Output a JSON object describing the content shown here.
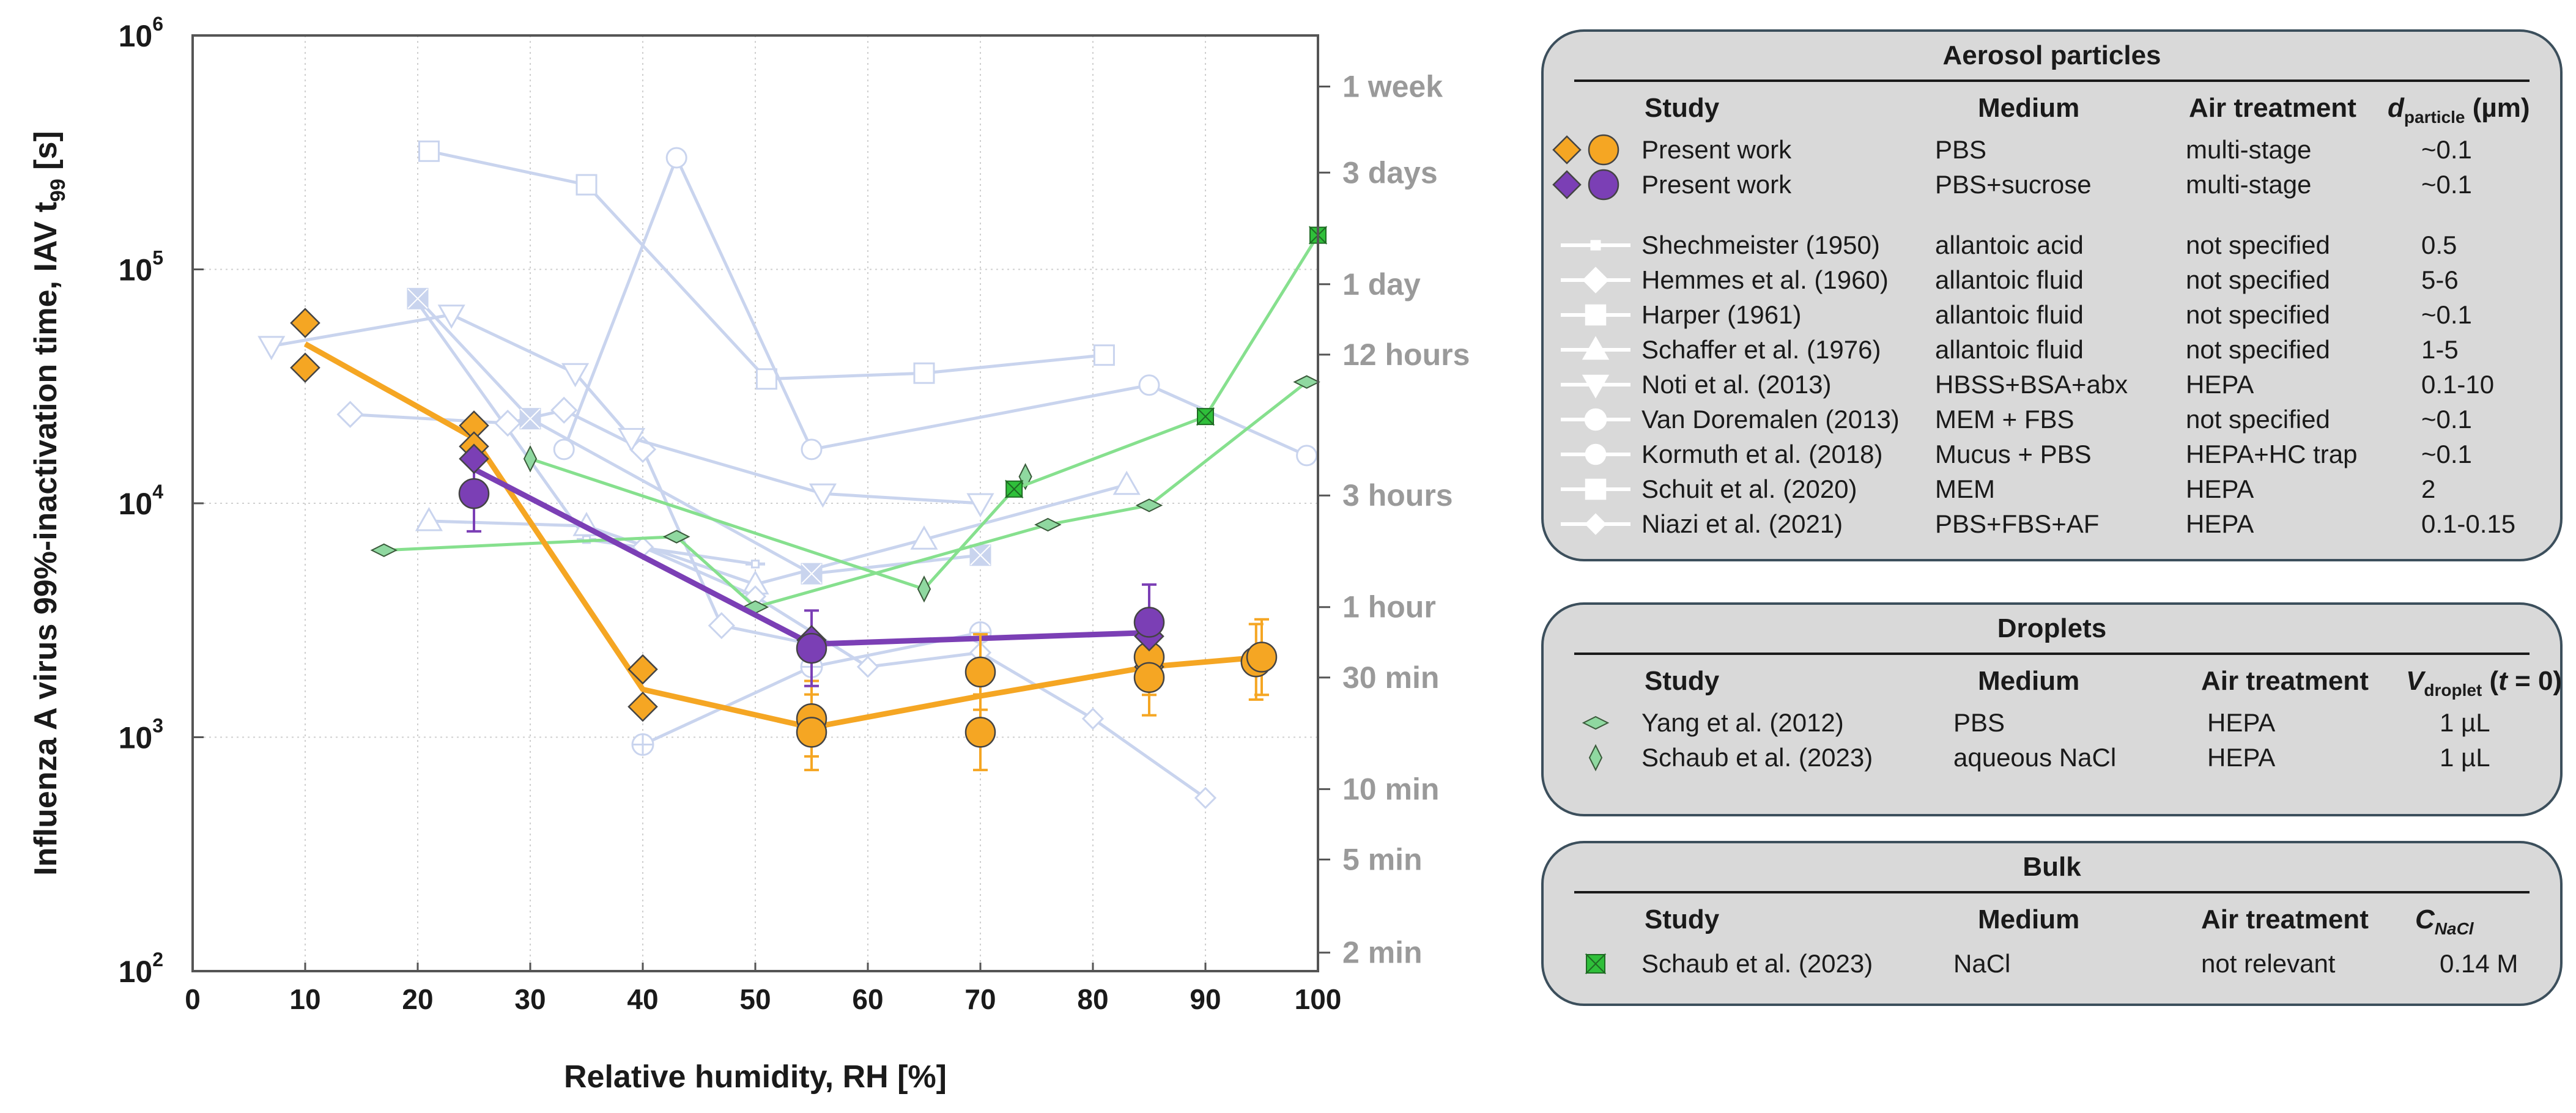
{
  "chart_data": {
    "type": "scatter",
    "xlabel": "Relative humidity, RH [%]",
    "ylabel_main": "Influenza A virus 99%-inactivation time, IAV t",
    "ylabel_sub": "99",
    "ylabel_unit": " [s]",
    "xlim": [
      0,
      100
    ],
    "ylim": [
      100,
      1000000
    ],
    "yscale": "log",
    "x_ticks": [
      "0",
      "10",
      "20",
      "30",
      "40",
      "50",
      "60",
      "70",
      "80",
      "90",
      "100"
    ],
    "y_ticks": [
      {
        "base": "10",
        "exp": "2"
      },
      {
        "base": "10",
        "exp": "3"
      },
      {
        "base": "10",
        "exp": "4"
      },
      {
        "base": "10",
        "exp": "5"
      },
      {
        "base": "10",
        "exp": "6"
      }
    ],
    "right_axis": [
      {
        "label": "1 week",
        "seconds": 604800
      },
      {
        "label": "3 days",
        "seconds": 259200
      },
      {
        "label": "1 day",
        "seconds": 86400
      },
      {
        "label": "12 hours",
        "seconds": 43200
      },
      {
        "label": "3 hours",
        "seconds": 10800
      },
      {
        "label": "1 hour",
        "seconds": 3600
      },
      {
        "label": "30 min",
        "seconds": 1800
      },
      {
        "label": "10 min",
        "seconds": 600
      },
      {
        "label": "5 min",
        "seconds": 300
      },
      {
        "label": "2 min",
        "seconds": 120
      }
    ],
    "colors": {
      "orange": "#f5a623",
      "purple": "#7b3fb5",
      "lit": "#c9d4ee",
      "green_fill": "#8fd8a0",
      "green_line": "#86e08e",
      "bulk": "#2fbf3a"
    },
    "lines": [
      {
        "name": "Present work PBS",
        "color": "#f5a623",
        "points": [
          [
            10,
            48000
          ],
          [
            25,
            19000
          ],
          [
            40,
            1600
          ],
          [
            55,
            1100
          ],
          [
            70,
            1500
          ],
          [
            85,
            2000
          ],
          [
            95,
            2200
          ]
        ]
      },
      {
        "name": "Present work PBS+sucrose",
        "color": "#7b3fb5",
        "points": [
          [
            25,
            14000
          ],
          [
            55,
            2500
          ],
          [
            85,
            2800
          ]
        ]
      }
    ],
    "series": [
      {
        "name": "Present work PBS (diamond)",
        "marker": "diamond",
        "color": "#f5a623",
        "points": [
          [
            10,
            59000
          ],
          [
            10,
            38000
          ],
          [
            25,
            21500
          ],
          [
            25,
            17500
          ],
          [
            40,
            1950
          ],
          [
            40,
            1350
          ],
          [
            55,
            1100
          ],
          [
            70,
            1050
          ],
          [
            85,
            2000
          ]
        ]
      },
      {
        "name": "Present work PBS (circle)",
        "marker": "circle",
        "color": "#f5a623",
        "points": [
          [
            55,
            1200
          ],
          [
            55,
            1050
          ],
          [
            70,
            1900
          ],
          [
            70,
            1050
          ],
          [
            85,
            2200
          ],
          [
            85,
            1800
          ],
          [
            94.5,
            2100
          ],
          [
            95,
            2200
          ]
        ]
      },
      {
        "name": "Present work PBS+sucrose (diamond)",
        "marker": "diamond",
        "color": "#7b3fb5",
        "points": [
          [
            25,
            15500
          ],
          [
            55,
            2600
          ],
          [
            85,
            2700
          ]
        ]
      },
      {
        "name": "Present work PBS+sucrose (circle)",
        "marker": "circle",
        "color": "#7b3fb5",
        "points": [
          [
            25,
            11000
          ],
          [
            55,
            2400
          ],
          [
            85,
            3100
          ]
        ]
      },
      {
        "name": "Shechmeister (1950)",
        "marker": "line",
        "color": "#c9d4ee",
        "points": [
          [
            20,
            72000
          ],
          [
            35,
            7000
          ],
          [
            50,
            5500
          ]
        ]
      },
      {
        "name": "Hemmes et al. (1960)",
        "marker": "diamond-hollow",
        "color": "#c9d4ee",
        "points": [
          [
            14,
            24000
          ],
          [
            28,
            22000
          ],
          [
            33,
            25000
          ],
          [
            40,
            17000
          ],
          [
            47,
            3000
          ],
          [
            55,
            2500
          ]
        ]
      },
      {
        "name": "Harper (1961)",
        "marker": "square",
        "color": "#c9d4ee",
        "points": [
          [
            21,
            320000
          ],
          [
            35,
            230000
          ],
          [
            51,
            34000
          ],
          [
            65,
            36000
          ],
          [
            81,
            43000
          ]
        ]
      },
      {
        "name": "Schaffer et al. (1976)",
        "marker": "triangle-up",
        "color": "#c9d4ee",
        "points": [
          [
            21,
            8400
          ],
          [
            35,
            8000
          ],
          [
            50,
            4500
          ],
          [
            65,
            7000
          ],
          [
            83,
            12000
          ]
        ]
      },
      {
        "name": "Noti et al. (2013)",
        "marker": "triangle-down",
        "color": "#c9d4ee",
        "points": [
          [
            7,
            47000
          ],
          [
            23,
            64000
          ],
          [
            34,
            36000
          ],
          [
            39,
            19000
          ],
          [
            56,
            11000
          ],
          [
            70,
            10000
          ]
        ]
      },
      {
        "name": "Van Doremalen (2013)",
        "marker": "cross-circle",
        "color": "#c9d4ee",
        "points": [
          [
            40,
            930
          ],
          [
            55,
            2000
          ],
          [
            70,
            2800
          ]
        ]
      },
      {
        "name": "Kormuth et al. (2018)",
        "marker": "circle-hollow",
        "color": "#c9d4ee",
        "points": [
          [
            33,
            17000
          ],
          [
            43,
            300000
          ],
          [
            55,
            17000
          ],
          [
            85,
            32000
          ],
          [
            99,
            16000
          ]
        ]
      },
      {
        "name": "Schuit et al. (2020)",
        "marker": "square-filled",
        "color": "#c9d4ee",
        "points": [
          [
            20,
            75000
          ],
          [
            30,
            23000
          ],
          [
            55,
            5000
          ],
          [
            70,
            6000
          ]
        ]
      },
      {
        "name": "Niazi et al. (2021)",
        "marker": "diamond-small",
        "color": "#c9d4ee",
        "points": [
          [
            40,
            6500
          ],
          [
            50,
            4000
          ],
          [
            60,
            2000
          ],
          [
            70,
            2300
          ],
          [
            80,
            1200
          ],
          [
            90,
            550
          ]
        ]
      },
      {
        "name": "Yang et al. (2012)",
        "marker": "diamond-flat",
        "color": "#8fd8a0",
        "points": [
          [
            17,
            6300
          ],
          [
            43,
            7200
          ],
          [
            50,
            3600
          ],
          [
            76,
            8100
          ],
          [
            85,
            9800
          ],
          [
            99,
            33000
          ]
        ]
      },
      {
        "name": "Schaub et al. (2023) droplets",
        "marker": "diamond-tall",
        "color": "#8fd8a0",
        "points": [
          [
            30,
            15500
          ],
          [
            65,
            4300
          ],
          [
            74,
            13000
          ]
        ]
      },
      {
        "name": "Schaub et al. (2023) bulk",
        "marker": "bowtie",
        "color": "#2fbf3a",
        "points": [
          [
            73,
            11500
          ],
          [
            90,
            23500
          ],
          [
            100,
            140000
          ]
        ]
      }
    ]
  },
  "legend": {
    "aerosol": {
      "title": "Aerosol particles",
      "headers": {
        "study": "Study",
        "medium": "Medium",
        "air": "Air treatment",
        "d": "d",
        "d_sub": "particle",
        "d_unit": " (µm)"
      },
      "rows": [
        {
          "marker": "orange-pair",
          "study": "Present work",
          "medium": "PBS",
          "air": "multi-stage",
          "size": "~0.1"
        },
        {
          "marker": "purple-pair",
          "study": "Present work",
          "medium": "PBS+sucrose",
          "air": "multi-stage",
          "size": "~0.1"
        },
        {
          "marker": "line",
          "study": "Shechmeister (1950)",
          "medium": "allantoic acid",
          "air": "not specified",
          "size": "0.5"
        },
        {
          "marker": "diamond-hollow",
          "study": "Hemmes et al. (1960)",
          "medium": "allantoic fluid",
          "air": "not specified",
          "size": "5-6"
        },
        {
          "marker": "square",
          "study": "Harper (1961)",
          "medium": "allantoic fluid",
          "air": "not specified",
          "size": "~0.1"
        },
        {
          "marker": "triangle-up",
          "study": "Schaffer et al. (1976)",
          "medium": "allantoic fluid",
          "air": "not specified",
          "size": "1-5"
        },
        {
          "marker": "triangle-down",
          "study": "Noti et al. (2013)",
          "medium": "HBSS+BSA+abx",
          "air": "HEPA",
          "size": "0.1-10"
        },
        {
          "marker": "cross-circle",
          "study": "Van Doremalen (2013)",
          "medium": "MEM + FBS",
          "air": "not specified",
          "size": "~0.1"
        },
        {
          "marker": "circle-hollow",
          "study": "Kormuth et al. (2018)",
          "medium": "Mucus + PBS",
          "air": "HEPA+HC trap",
          "size": "~0.1"
        },
        {
          "marker": "square-filled",
          "study": "Schuit et al. (2020)",
          "medium": "MEM",
          "air": "HEPA",
          "size": "2"
        },
        {
          "marker": "diamond-small",
          "study": "Niazi et al. (2021)",
          "medium": "PBS+FBS+AF",
          "air": "HEPA",
          "size": "0.1-0.15"
        }
      ]
    },
    "droplets": {
      "title": "Droplets",
      "headers": {
        "study": "Study",
        "medium": "Medium",
        "air": "Air treatment",
        "v": "V",
        "v_sub": "droplet",
        "v_paren_open": " (",
        "v_t": "t",
        "v_paren_close": " = 0)"
      },
      "rows": [
        {
          "marker": "diamond-flat",
          "study": "Yang et al. (2012)",
          "medium": "PBS",
          "air": "HEPA",
          "size": "1 µL"
        },
        {
          "marker": "diamond-tall",
          "study": "Schaub et al. (2023)",
          "medium": "aqueous NaCl",
          "air": "HEPA",
          "size": "1 µL"
        }
      ]
    },
    "bulk": {
      "title": "Bulk",
      "headers": {
        "study": "Study",
        "medium": "Medium",
        "air": "Air treatment",
        "c": "C",
        "c_sub": "NaCl"
      },
      "rows": [
        {
          "marker": "bowtie",
          "study": "Schaub et al. (2023)",
          "medium": "NaCl",
          "air": "not relevant",
          "size": "0.14 M"
        }
      ]
    }
  }
}
